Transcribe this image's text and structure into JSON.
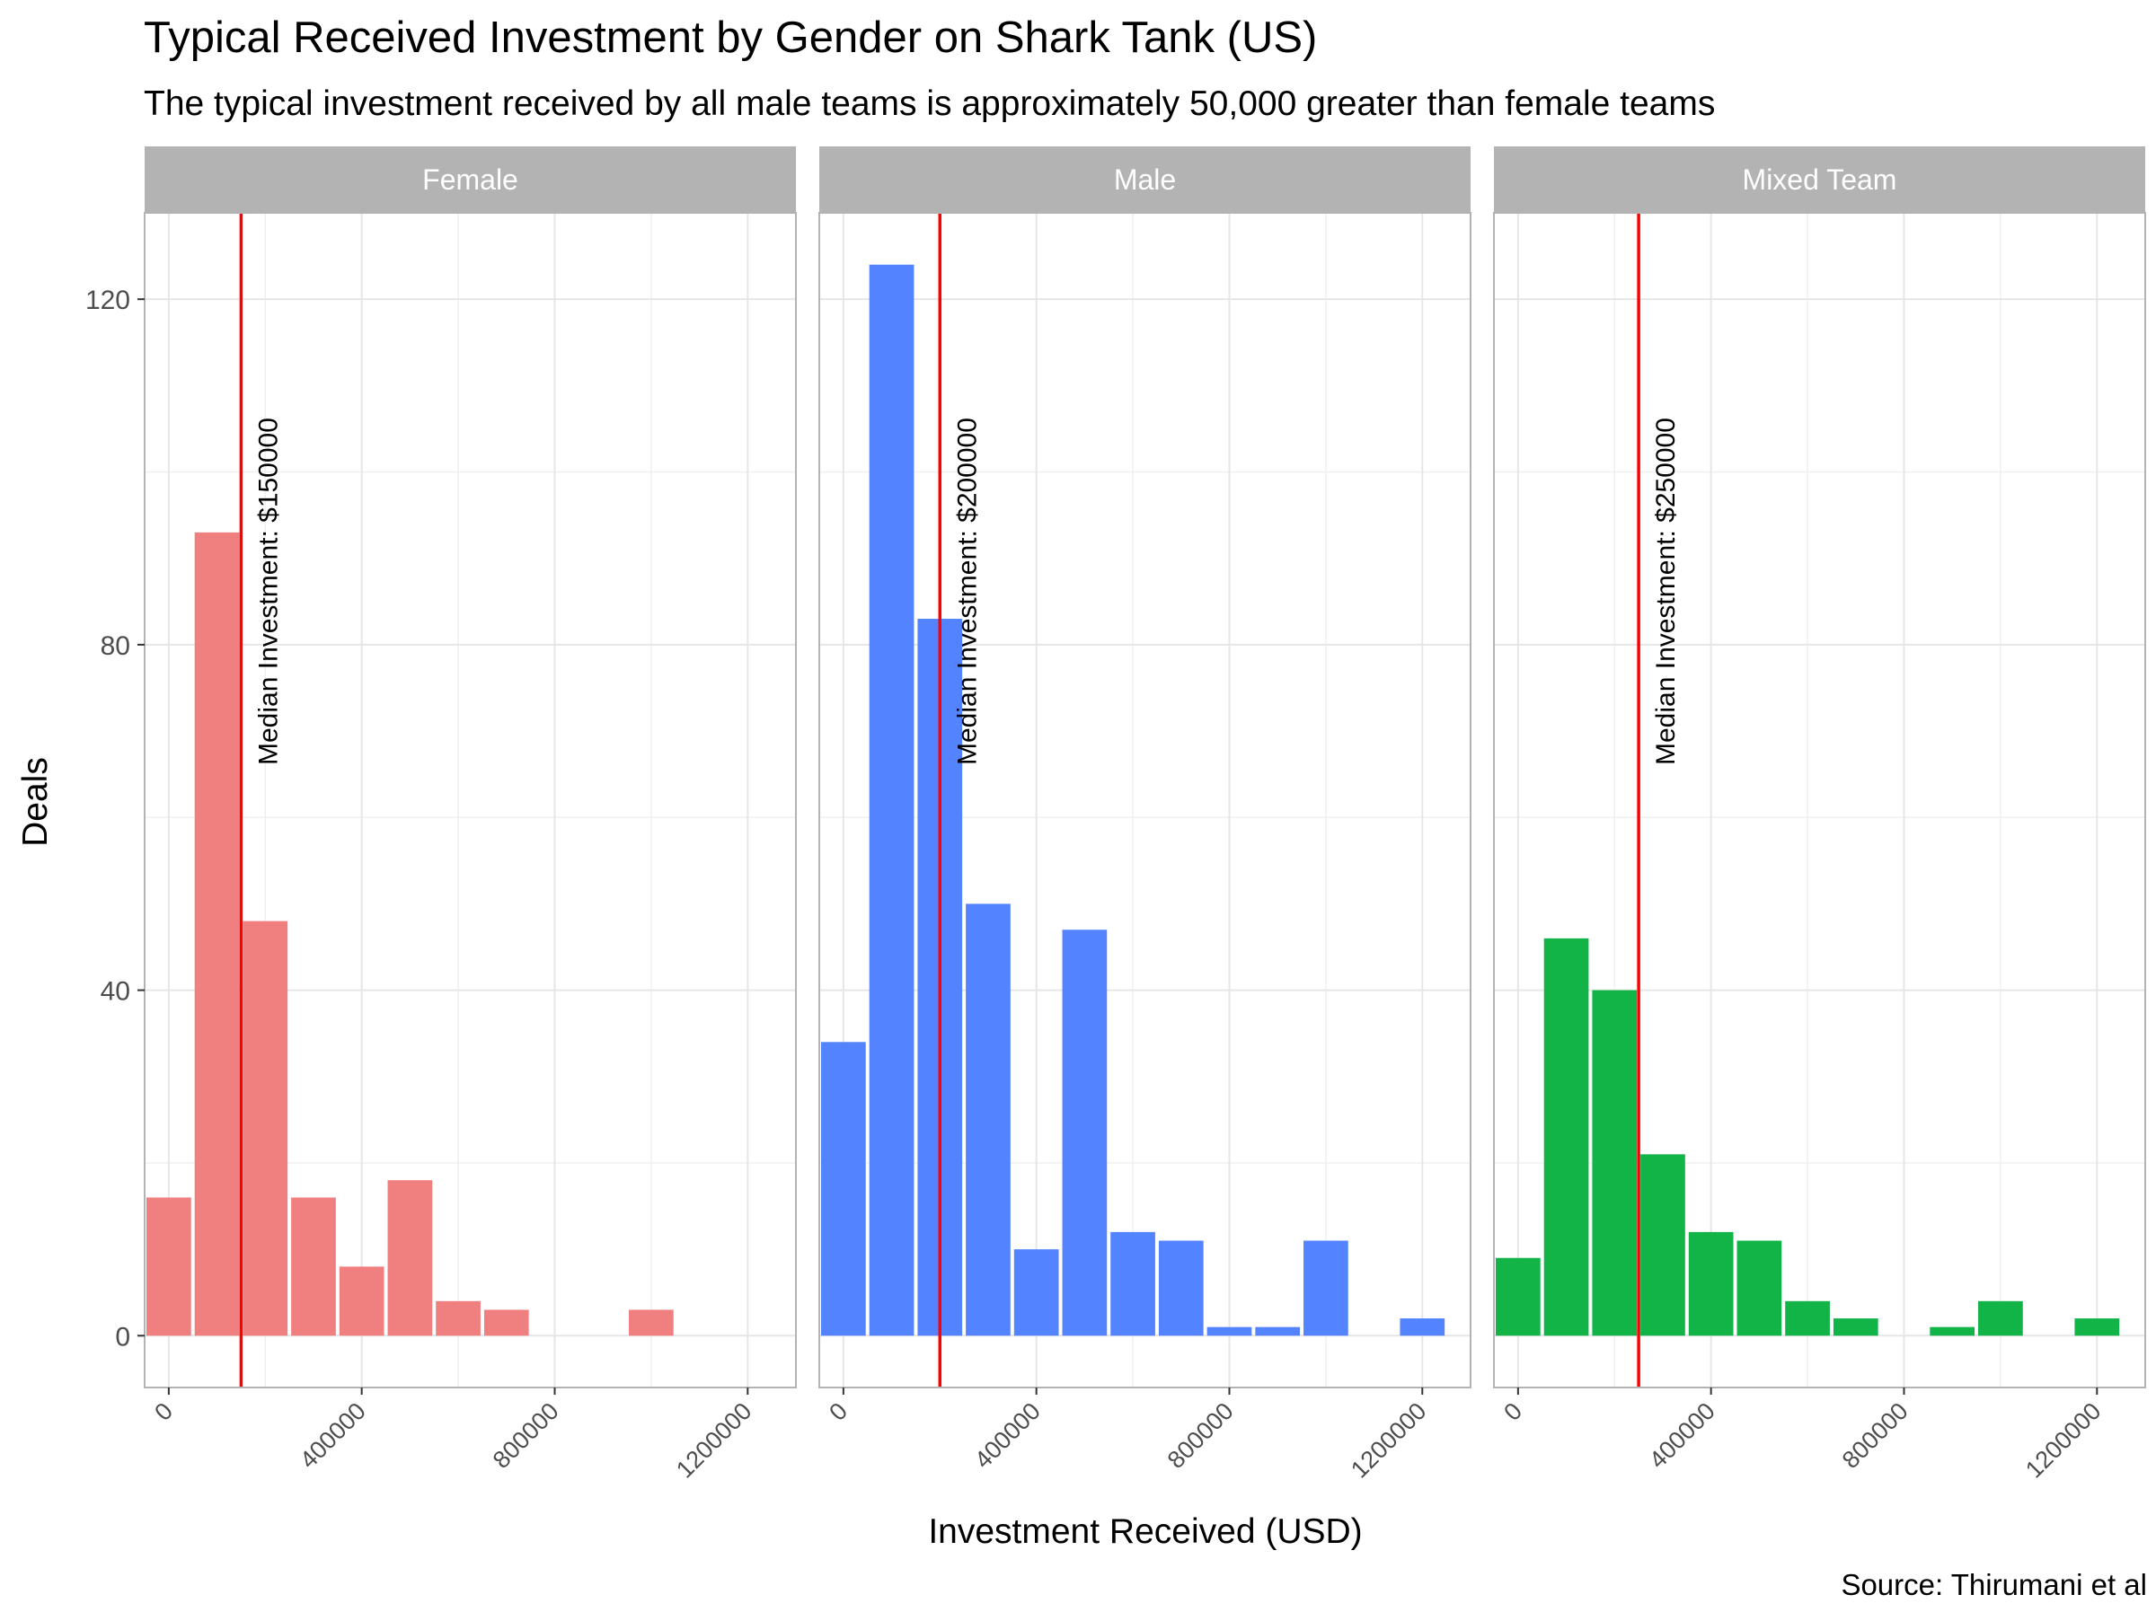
{
  "chart_data": {
    "type": "bar",
    "title": "Typical Received Investment by Gender on Shark Tank (US)",
    "subtitle": "The typical investment received by all male teams is approximately 50,000 greater than female teams",
    "xlabel": "Investment Received (USD)",
    "ylabel": "Deals",
    "caption": "Source: Thirumani et al",
    "xlim": [
      -50000,
      1300000
    ],
    "ylim": [
      -6,
      130
    ],
    "x_ticks": [
      0,
      400000,
      800000,
      1200000
    ],
    "x_tick_labels": [
      "0",
      "400000",
      "800000",
      "1200000"
    ],
    "y_ticks": [
      0,
      40,
      80,
      120
    ],
    "y_tick_labels": [
      "0",
      "40",
      "80",
      "120"
    ],
    "grid": true,
    "bin_width": 100000,
    "bin_centers": [
      0,
      100000,
      200000,
      300000,
      400000,
      500000,
      600000,
      700000,
      800000,
      900000,
      1000000,
      1100000,
      1200000
    ],
    "panels": [
      {
        "name": "Female",
        "color": "#F08080",
        "values": [
          16,
          93,
          48,
          16,
          8,
          18,
          4,
          3,
          0,
          0,
          3,
          0,
          0
        ],
        "median": 150000,
        "median_label": "Median Investment: $150000"
      },
      {
        "name": "Male",
        "color": "#5383FF",
        "values": [
          34,
          124,
          83,
          50,
          10,
          47,
          12,
          11,
          1,
          1,
          11,
          0,
          2
        ],
        "median": 200000,
        "median_label": "Median Investment: $200000"
      },
      {
        "name": "Mixed Team",
        "color": "#12B447",
        "values": [
          9,
          46,
          40,
          21,
          12,
          11,
          4,
          2,
          0,
          1,
          4,
          0,
          2
        ],
        "median": 250000,
        "median_label": "Median Investment: $250000"
      }
    ],
    "median_line_color": "#FF0000",
    "strip_color": "#B3B3B3",
    "grid_color": "#E6E6E6"
  }
}
